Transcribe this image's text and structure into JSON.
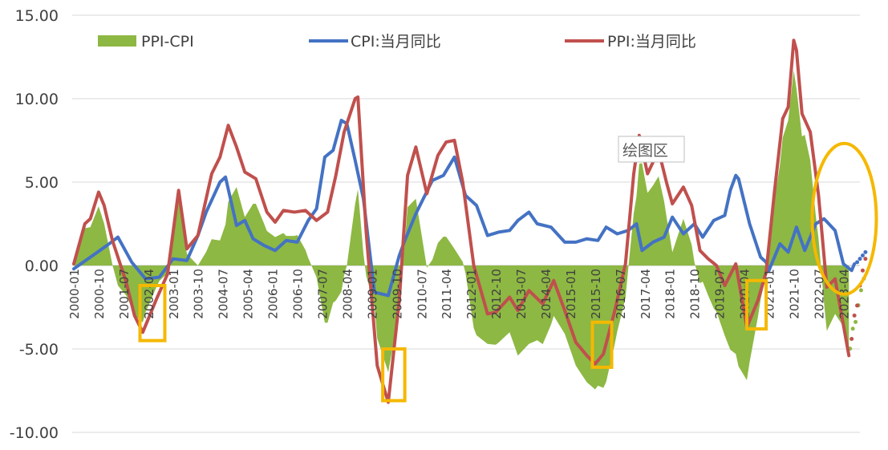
{
  "chart_data": {
    "type": "line",
    "title": "",
    "xlabel": "",
    "ylabel": "",
    "ylim": [
      -10,
      15
    ],
    "yticks": [
      "-10.00",
      "-5.00",
      "0.00",
      "5.00",
      "10.00",
      "15.00"
    ],
    "x_tick_labels": [
      "2000-01",
      "2000-10",
      "2001-07",
      "2002-04",
      "2003-01",
      "2003-10",
      "2004-07",
      "2005-04",
      "2006-01",
      "2006-10",
      "2007-07",
      "2008-04",
      "2009-01",
      "2009-10",
      "2010-07",
      "2011-04",
      "2012-01",
      "2012-10",
      "2013-07",
      "2014-04",
      "2015-01",
      "2015-10",
      "2016-07",
      "2017-04",
      "2018-01",
      "2018-10",
      "2019-07",
      "2020-04",
      "2021-01",
      "2021-10",
      "2022-07",
      "2023-04"
    ],
    "legend_position": "top",
    "grid": "horizontal",
    "x_start": "2000-01",
    "x_end": "2023-10",
    "series": [
      {
        "name": "CPI:当月同比",
        "kind": "line",
        "color": "#4472C4",
        "points": [
          [
            "2000-01",
            -0.2
          ],
          [
            "2000-07",
            0.5
          ],
          [
            "2001-01",
            1.2
          ],
          [
            "2001-05",
            1.7
          ],
          [
            "2001-10",
            0.2
          ],
          [
            "2002-03",
            -0.8
          ],
          [
            "2002-08",
            -0.7
          ],
          [
            "2003-01",
            0.4
          ],
          [
            "2003-06",
            0.3
          ],
          [
            "2003-10",
            1.8
          ],
          [
            "2004-01",
            3.2
          ],
          [
            "2004-06",
            5.0
          ],
          [
            "2004-08",
            5.3
          ],
          [
            "2004-12",
            2.4
          ],
          [
            "2005-03",
            2.7
          ],
          [
            "2005-06",
            1.6
          ],
          [
            "2005-10",
            1.2
          ],
          [
            "2006-02",
            0.9
          ],
          [
            "2006-06",
            1.5
          ],
          [
            "2006-10",
            1.4
          ],
          [
            "2007-02",
            2.7
          ],
          [
            "2007-05",
            3.4
          ],
          [
            "2007-08",
            6.5
          ],
          [
            "2007-11",
            6.9
          ],
          [
            "2008-02",
            8.7
          ],
          [
            "2008-04",
            8.5
          ],
          [
            "2008-07",
            6.3
          ],
          [
            "2008-10",
            4.0
          ],
          [
            "2009-02",
            -1.6
          ],
          [
            "2009-07",
            -1.8
          ],
          [
            "2009-11",
            0.6
          ],
          [
            "2010-01",
            1.5
          ],
          [
            "2010-05",
            3.1
          ],
          [
            "2010-11",
            5.1
          ],
          [
            "2011-03",
            5.4
          ],
          [
            "2011-07",
            6.5
          ],
          [
            "2011-11",
            4.2
          ],
          [
            "2012-03",
            3.6
          ],
          [
            "2012-07",
            1.8
          ],
          [
            "2012-11",
            2.0
          ],
          [
            "2013-03",
            2.1
          ],
          [
            "2013-06",
            2.7
          ],
          [
            "2013-10",
            3.2
          ],
          [
            "2014-01",
            2.5
          ],
          [
            "2014-06",
            2.3
          ],
          [
            "2014-11",
            1.4
          ],
          [
            "2015-03",
            1.4
          ],
          [
            "2015-07",
            1.6
          ],
          [
            "2015-11",
            1.5
          ],
          [
            "2016-02",
            2.3
          ],
          [
            "2016-06",
            1.9
          ],
          [
            "2016-10",
            2.1
          ],
          [
            "2017-01",
            2.5
          ],
          [
            "2017-03",
            0.9
          ],
          [
            "2017-07",
            1.4
          ],
          [
            "2017-11",
            1.7
          ],
          [
            "2018-02",
            2.9
          ],
          [
            "2018-06",
            1.9
          ],
          [
            "2018-10",
            2.5
          ],
          [
            "2019-01",
            1.7
          ],
          [
            "2019-05",
            2.7
          ],
          [
            "2019-09",
            3.0
          ],
          [
            "2019-11",
            4.5
          ],
          [
            "2020-01",
            5.4
          ],
          [
            "2020-02",
            5.2
          ],
          [
            "2020-06",
            2.5
          ],
          [
            "2020-10",
            0.5
          ],
          [
            "2020-12",
            0.2
          ],
          [
            "2021-01",
            -0.3
          ],
          [
            "2021-05",
            1.3
          ],
          [
            "2021-08",
            0.8
          ],
          [
            "2021-11",
            2.3
          ],
          [
            "2022-02",
            0.9
          ],
          [
            "2022-06",
            2.5
          ],
          [
            "2022-09",
            2.8
          ],
          [
            "2023-01",
            2.1
          ],
          [
            "2023-04",
            0.1
          ],
          [
            "2023-07",
            -0.3
          ],
          [
            "2023-08",
            0.1
          ]
        ],
        "forecast": [
          [
            "2023-09",
            0.2
          ],
          [
            "2023-10",
            0.4
          ],
          [
            "2023-11",
            0.6
          ],
          [
            "2023-12",
            0.8
          ]
        ]
      },
      {
        "name": "PPI:当月同比",
        "kind": "line",
        "color": "#C0504D",
        "points": [
          [
            "2000-01",
            0.1
          ],
          [
            "2000-05",
            2.5
          ],
          [
            "2000-07",
            2.8
          ],
          [
            "2000-10",
            4.4
          ],
          [
            "2000-12",
            3.6
          ],
          [
            "2001-03",
            1.5
          ],
          [
            "2001-08",
            -1.0
          ],
          [
            "2001-11",
            -3.0
          ],
          [
            "2002-02",
            -4.0
          ],
          [
            "2002-07",
            -2.0
          ],
          [
            "2002-11",
            -0.5
          ],
          [
            "2003-03",
            4.5
          ],
          [
            "2003-06",
            1.0
          ],
          [
            "2003-10",
            1.8
          ],
          [
            "2004-03",
            5.5
          ],
          [
            "2004-06",
            6.5
          ],
          [
            "2004-09",
            8.4
          ],
          [
            "2004-12",
            7.1
          ],
          [
            "2005-03",
            5.6
          ],
          [
            "2005-07",
            5.2
          ],
          [
            "2005-11",
            3.2
          ],
          [
            "2006-02",
            2.6
          ],
          [
            "2006-05",
            3.3
          ],
          [
            "2006-09",
            3.2
          ],
          [
            "2007-01",
            3.3
          ],
          [
            "2007-05",
            2.7
          ],
          [
            "2007-09",
            3.2
          ],
          [
            "2007-12",
            5.4
          ],
          [
            "2008-03",
            8.0
          ],
          [
            "2008-07",
            10.0
          ],
          [
            "2008-08",
            10.1
          ],
          [
            "2008-11",
            2.0
          ],
          [
            "2009-03",
            -6.0
          ],
          [
            "2009-07",
            -8.2
          ],
          [
            "2009-11",
            -2.1
          ],
          [
            "2010-02",
            5.4
          ],
          [
            "2010-05",
            7.1
          ],
          [
            "2010-09",
            4.3
          ],
          [
            "2011-01",
            6.6
          ],
          [
            "2011-04",
            7.4
          ],
          [
            "2011-07",
            7.5
          ],
          [
            "2011-10",
            5.0
          ],
          [
            "2012-02",
            0.0
          ],
          [
            "2012-07",
            -2.9
          ],
          [
            "2012-10",
            -2.8
          ],
          [
            "2013-03",
            -1.9
          ],
          [
            "2013-06",
            -2.7
          ],
          [
            "2013-10",
            -1.5
          ],
          [
            "2014-03",
            -2.3
          ],
          [
            "2014-07",
            -0.9
          ],
          [
            "2014-11",
            -2.7
          ],
          [
            "2015-03",
            -4.6
          ],
          [
            "2015-07",
            -5.4
          ],
          [
            "2015-10",
            -5.9
          ],
          [
            "2016-01",
            -5.3
          ],
          [
            "2016-05",
            -2.8
          ],
          [
            "2016-09",
            0.1
          ],
          [
            "2016-12",
            5.5
          ],
          [
            "2017-02",
            7.8
          ],
          [
            "2017-05",
            5.5
          ],
          [
            "2017-09",
            6.9
          ],
          [
            "2017-12",
            4.9
          ],
          [
            "2018-02",
            3.7
          ],
          [
            "2018-06",
            4.7
          ],
          [
            "2018-09",
            3.6
          ],
          [
            "2018-12",
            0.9
          ],
          [
            "2019-03",
            0.4
          ],
          [
            "2019-06",
            0.0
          ],
          [
            "2019-09",
            -1.2
          ],
          [
            "2020-01",
            0.1
          ],
          [
            "2020-05",
            -3.7
          ],
          [
            "2020-09",
            -2.1
          ],
          [
            "2020-12",
            -0.4
          ],
          [
            "2021-03",
            4.4
          ],
          [
            "2021-06",
            8.8
          ],
          [
            "2021-08",
            9.5
          ],
          [
            "2021-10",
            13.5
          ],
          [
            "2021-11",
            12.9
          ],
          [
            "2022-01",
            9.1
          ],
          [
            "2022-04",
            8.0
          ],
          [
            "2022-07",
            4.2
          ],
          [
            "2022-10",
            -1.3
          ],
          [
            "2023-01",
            -0.8
          ],
          [
            "2023-06",
            -5.4
          ]
        ],
        "forecast": [
          [
            "2023-07",
            -4.4
          ],
          [
            "2023-08",
            -3.0
          ],
          [
            "2023-09",
            -2.4
          ],
          [
            "2023-10",
            -1.2
          ],
          [
            "2023-11",
            -0.3
          ],
          [
            "2023-12",
            0.4
          ]
        ]
      },
      {
        "name": "PPI-CPI",
        "kind": "area",
        "color": "#8DB843",
        "derived": "PPI - CPI"
      }
    ]
  },
  "annotations": {
    "plot_area_label": "绘图区",
    "highlight_boxes": [
      {
        "start": "2002-01",
        "end": "2002-10",
        "y_top": -1.2,
        "y_bottom": -4.5
      },
      {
        "start": "2009-05",
        "end": "2010-01",
        "y_top": -5.0,
        "y_bottom": -8.1
      },
      {
        "start": "2015-09",
        "end": "2016-04",
        "y_top": -3.4,
        "y_bottom": -6.1
      },
      {
        "start": "2020-05",
        "end": "2020-12",
        "y_top": -0.9,
        "y_bottom": -3.8
      }
    ],
    "ellipse": {
      "center": "2023-02",
      "value": 2.8,
      "color": "#F5B800"
    },
    "box_color": "#F5B800"
  }
}
